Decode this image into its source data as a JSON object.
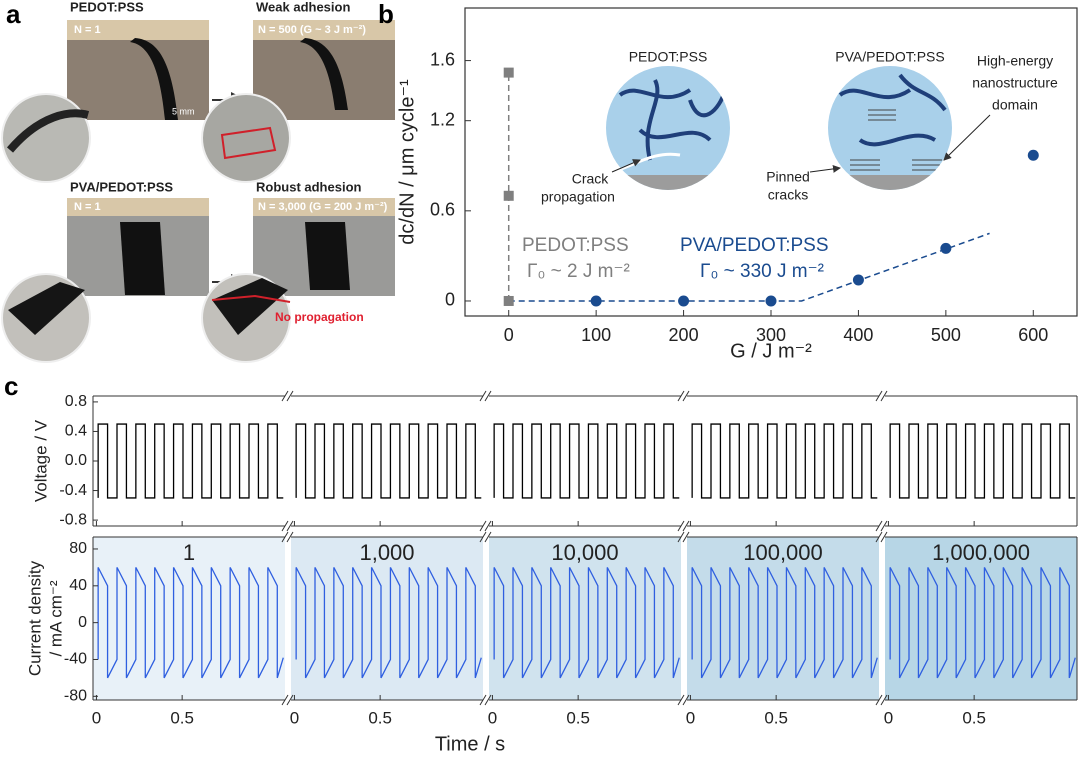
{
  "panel_a": {
    "label": "a",
    "photos": [
      {
        "title": "PEDOT:PSS",
        "caption": "N = 1",
        "scale": "5 mm"
      },
      {
        "title": "Weak adhesion",
        "caption": "N = 500 (G ~ 3 J m⁻²)"
      },
      {
        "title": "PVA/PEDOT:PSS",
        "caption": "N = 1"
      },
      {
        "title": "Robust adhesion",
        "caption": "N = 3,000 (G = 200 J m⁻²)",
        "note": "No propagation"
      }
    ]
  },
  "chart_data": [
    {
      "type": "scatter",
      "panel": "b",
      "x_label": "G / J m⁻²",
      "y_label": "dc/dN / μm cycle⁻¹",
      "xlim": [
        -50,
        650
      ],
      "xticks": [
        0,
        100,
        200,
        300,
        400,
        500,
        600
      ],
      "ylim": [
        -0.1,
        1.95
      ],
      "yticks": [
        0,
        0.6,
        1.2,
        1.6
      ],
      "series": [
        {
          "name": "PEDOT:PSS",
          "color": "#7f7f7f",
          "marker": "square",
          "x": [
            0,
            0,
            0
          ],
          "values": [
            1.52,
            0.7,
            0
          ]
        },
        {
          "name": "PVA/PEDOT:PSS",
          "color": "#1a4b8f",
          "marker": "circle",
          "x": [
            100,
            200,
            300,
            400,
            500,
            600
          ],
          "values": [
            0,
            0,
            0,
            0.14,
            0.35,
            0.97
          ]
        }
      ],
      "fits": [
        {
          "color": "#7f7f7f",
          "x": [
            0,
            0
          ],
          "values": [
            0,
            1.52
          ]
        },
        {
          "color": "#1a4b8f",
          "x": [
            0,
            335,
            550
          ],
          "values": [
            0,
            0,
            0.45
          ]
        }
      ],
      "annotations": [
        {
          "text": "PEDOT:PSS",
          "color": "#7f7f7f"
        },
        {
          "text": "Γ₀ ~ 2 J m⁻²",
          "color": "#7f7f7f"
        },
        {
          "text": "PVA/PEDOT:PSS",
          "color": "#1a4b8f"
        },
        {
          "text": "Γ₀ ~ 330 J m⁻²",
          "color": "#1a4b8f"
        }
      ],
      "insets": [
        {
          "title": "PEDOT:PSS",
          "label": [
            "Crack",
            "propagation"
          ]
        },
        {
          "title": "PVA/PEDOT:PSS",
          "label": [
            "Pinned",
            "cracks"
          ],
          "label2": [
            "High-energy",
            "nanostructure",
            "domain"
          ]
        }
      ]
    },
    {
      "type": "line",
      "panel": "c",
      "y_label": "Voltage / V",
      "color": "#000000",
      "xlim": [
        -0.02,
        1.1
      ],
      "xticks": [
        0,
        0.5
      ],
      "ylim": [
        -0.88,
        0.88
      ],
      "yticks": [
        0.8,
        0.4,
        {
          "value": 0,
          "label": "0.0"
        },
        -0.4,
        -0.8
      ],
      "x": [
        0.01,
        0.01,
        0.065,
        0.065,
        0.12,
        0.12,
        0.175,
        0.175,
        0.23,
        0.23,
        0.285,
        0.285,
        0.34,
        0.34,
        0.395,
        0.395,
        0.45,
        0.45,
        0.505,
        0.505,
        0.56,
        0.56,
        0.615,
        0.615,
        0.67,
        0.67,
        0.725,
        0.725,
        0.78,
        0.78,
        0.835,
        0.835,
        0.89,
        0.89,
        0.945,
        0.945,
        1.0,
        1.0,
        1.055,
        1.055,
        1.09
      ],
      "values": [
        -0.5,
        0.5,
        0.5,
        -0.5,
        -0.5,
        0.5,
        0.5,
        -0.5,
        -0.5,
        0.5,
        0.5,
        -0.5,
        -0.5,
        0.5,
        0.5,
        -0.5,
        -0.5,
        0.5,
        0.5,
        -0.5,
        -0.5,
        0.5,
        0.5,
        -0.5,
        -0.5,
        0.5,
        0.5,
        -0.5,
        -0.5,
        0.5,
        0.5,
        -0.5,
        -0.5,
        0.5,
        0.5,
        -0.5,
        -0.5,
        0.5,
        0.5,
        -0.5,
        -0.5
      ]
    },
    {
      "type": "line",
      "y_label": [
        "Current density",
        "/ mA cm⁻²"
      ],
      "x_label": "Time / s",
      "color": "#2f5fe0",
      "segments": [
        "1",
        "1,000",
        "10,000",
        "100,000",
        "1,000,000"
      ],
      "segment_colors": [
        "#e8f1f8",
        "#dce9f3",
        "#d0e3ee",
        "#c4dcea",
        "#b7d6e6"
      ],
      "xlim": [
        -0.02,
        1.1
      ],
      "xticks": [
        0,
        0.5
      ],
      "ylim": [
        -84,
        93
      ],
      "yticks": [
        80,
        40,
        0,
        -40,
        -80
      ],
      "x": [
        0.01,
        0.01,
        0.065,
        0.065,
        0.12,
        0.12,
        0.175,
        0.175,
        0.23,
        0.23,
        0.285,
        0.285,
        0.34,
        0.34,
        0.395,
        0.395,
        0.45,
        0.45,
        0.505,
        0.505,
        0.56,
        0.56,
        0.615,
        0.615,
        0.67,
        0.67,
        0.725,
        0.725,
        0.78,
        0.78,
        0.835,
        0.835,
        0.89,
        0.89,
        0.945,
        0.945,
        1.0,
        1.0,
        1.055,
        1.055,
        1.09
      ],
      "values": [
        -40,
        60,
        40,
        -60,
        -40,
        60,
        40,
        -60,
        -40,
        60,
        40,
        -60,
        -40,
        60,
        40,
        -60,
        -40,
        60,
        40,
        -60,
        -40,
        60,
        40,
        -60,
        -40,
        60,
        40,
        -60,
        -40,
        60,
        40,
        -60,
        -40,
        60,
        40,
        -60,
        -40,
        60,
        40,
        -60,
        -38
      ]
    }
  ]
}
